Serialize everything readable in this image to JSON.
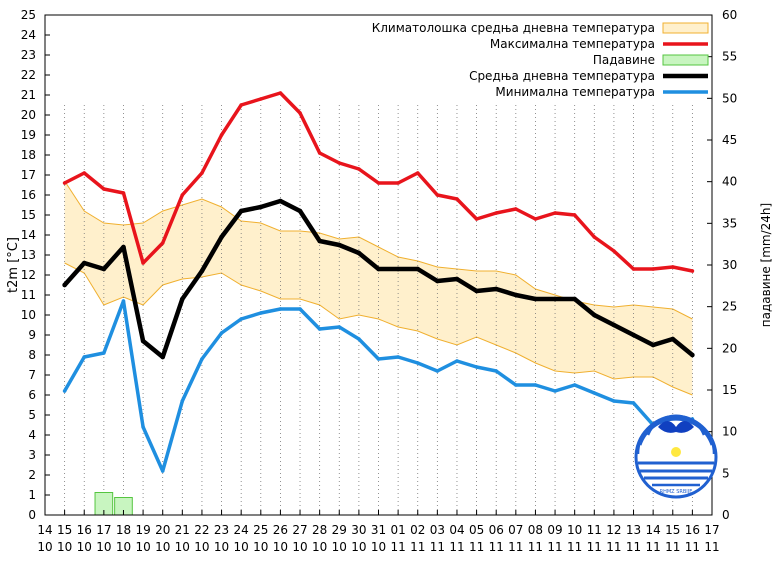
{
  "chart_data": {
    "type": "line",
    "ylabel": "t2m [°C]",
    "y2label": "падавине [mm/24h]",
    "ylim": [
      0,
      25
    ],
    "y2lim": [
      0,
      60
    ],
    "grid": "vertical dotted lines at each day",
    "legend_position": "top-right",
    "x_ticks": [
      {
        "day": "14",
        "month": "10"
      },
      {
        "day": "15",
        "month": "10"
      },
      {
        "day": "16",
        "month": "10"
      },
      {
        "day": "17",
        "month": "10"
      },
      {
        "day": "18",
        "month": "10"
      },
      {
        "day": "19",
        "month": "10"
      },
      {
        "day": "20",
        "month": "10"
      },
      {
        "day": "21",
        "month": "10"
      },
      {
        "day": "22",
        "month": "10"
      },
      {
        "day": "23",
        "month": "10"
      },
      {
        "day": "24",
        "month": "10"
      },
      {
        "day": "25",
        "month": "10"
      },
      {
        "day": "26",
        "month": "10"
      },
      {
        "day": "27",
        "month": "10"
      },
      {
        "day": "28",
        "month": "10"
      },
      {
        "day": "29",
        "month": "10"
      },
      {
        "day": "30",
        "month": "10"
      },
      {
        "day": "31",
        "month": "10"
      },
      {
        "day": "01",
        "month": "11"
      },
      {
        "day": "02",
        "month": "11"
      },
      {
        "day": "03",
        "month": "11"
      },
      {
        "day": "04",
        "month": "11"
      },
      {
        "day": "05",
        "month": "11"
      },
      {
        "day": "06",
        "month": "11"
      },
      {
        "day": "07",
        "month": "11"
      },
      {
        "day": "08",
        "month": "11"
      },
      {
        "day": "09",
        "month": "11"
      },
      {
        "day": "10",
        "month": "11"
      },
      {
        "day": "11",
        "month": "11"
      },
      {
        "day": "12",
        "month": "11"
      },
      {
        "day": "13",
        "month": "11"
      },
      {
        "day": "14",
        "month": "11"
      },
      {
        "day": "15",
        "month": "11"
      },
      {
        "day": "16",
        "month": "11"
      },
      {
        "day": "17",
        "month": "11"
      }
    ],
    "y_ticks": [
      0,
      1,
      2,
      3,
      4,
      5,
      6,
      7,
      8,
      9,
      10,
      11,
      12,
      13,
      14,
      15,
      16,
      17,
      18,
      19,
      20,
      21,
      22,
      23,
      24,
      25
    ],
    "y2_ticks": [
      0,
      5,
      10,
      15,
      20,
      25,
      30,
      35,
      40,
      45,
      50,
      55,
      60
    ],
    "x_values": [
      1,
      2,
      3,
      4,
      5,
      6,
      7,
      8,
      9,
      10,
      11,
      12,
      13,
      14,
      15,
      16,
      17,
      18,
      19,
      20,
      21,
      22,
      23,
      24,
      25,
      26,
      27,
      28,
      29,
      30,
      31,
      32,
      33
    ],
    "climatology_band": {
      "name": "Климатолошка средња дневна температура",
      "upper": [
        16.7,
        15.2,
        14.6,
        14.5,
        14.6,
        15.2,
        15.5,
        15.8,
        15.4,
        14.7,
        14.6,
        14.2,
        14.2,
        14.1,
        13.8,
        13.9,
        13.4,
        12.9,
        12.7,
        12.4,
        12.3,
        12.2,
        12.2,
        12.0,
        11.3,
        11.0,
        10.7,
        10.5,
        10.4,
        10.5,
        10.4,
        10.3,
        9.8
      ],
      "lower": [
        12.6,
        12.1,
        10.5,
        10.9,
        10.5,
        11.5,
        11.8,
        11.9,
        12.1,
        11.5,
        11.2,
        10.8,
        10.8,
        10.5,
        9.8,
        10.0,
        9.8,
        9.4,
        9.2,
        8.8,
        8.5,
        8.9,
        8.5,
        8.1,
        7.6,
        7.2,
        7.1,
        7.2,
        6.8,
        6.9,
        6.9,
        6.4,
        6.0
      ],
      "fill": "#fff0cc",
      "stroke": "#f0b030"
    },
    "series": [
      {
        "name": "Максимална температура",
        "color": "#e8141c",
        "width": 3.5,
        "values": [
          16.6,
          17.1,
          16.3,
          16.1,
          12.6,
          13.6,
          16.0,
          17.1,
          19.0,
          20.5,
          20.8,
          21.1,
          20.1,
          18.1,
          17.6,
          17.3,
          16.6,
          16.6,
          17.1,
          16.0,
          15.8,
          14.8,
          15.1,
          15.3,
          14.8,
          15.1,
          15.0,
          13.9,
          13.2,
          12.3,
          12.3,
          12.4,
          12.2
        ]
      },
      {
        "name": "Средња дневна температура",
        "color": "#000000",
        "width": 4.5,
        "values": [
          11.5,
          12.6,
          12.3,
          13.4,
          8.7,
          7.9,
          10.8,
          12.2,
          13.9,
          15.2,
          15.4,
          15.7,
          15.2,
          13.7,
          13.5,
          13.1,
          12.3,
          12.3,
          12.3,
          11.7,
          11.8,
          11.2,
          11.3,
          11.0,
          10.8,
          10.8,
          10.8,
          10.0,
          9.5,
          9.0,
          8.5,
          8.8,
          8.0
        ]
      },
      {
        "name": "Минимална температура",
        "color": "#1f8fe0",
        "width": 3.5,
        "values": [
          6.2,
          7.9,
          8.1,
          10.7,
          4.4,
          2.2,
          5.7,
          7.8,
          9.1,
          9.8,
          10.1,
          10.3,
          10.3,
          9.3,
          9.4,
          8.8,
          7.8,
          7.9,
          7.6,
          7.2,
          7.7,
          7.4,
          7.2,
          6.5,
          6.5,
          6.2,
          6.5,
          6.1,
          5.7,
          5.6,
          4.5,
          4.3,
          4.8
        ]
      }
    ],
    "precipitation": {
      "name": "Падавине",
      "unit": "mm/24h",
      "x": [
        3,
        4
      ],
      "values": [
        2.7,
        2.1
      ],
      "fill": "#c8f5c0",
      "stroke": "#55c540"
    },
    "logo": {
      "icon": "rhmz-sphere-logo",
      "text": "RHMZ SRBIJE",
      "color": "#2060d0"
    }
  }
}
